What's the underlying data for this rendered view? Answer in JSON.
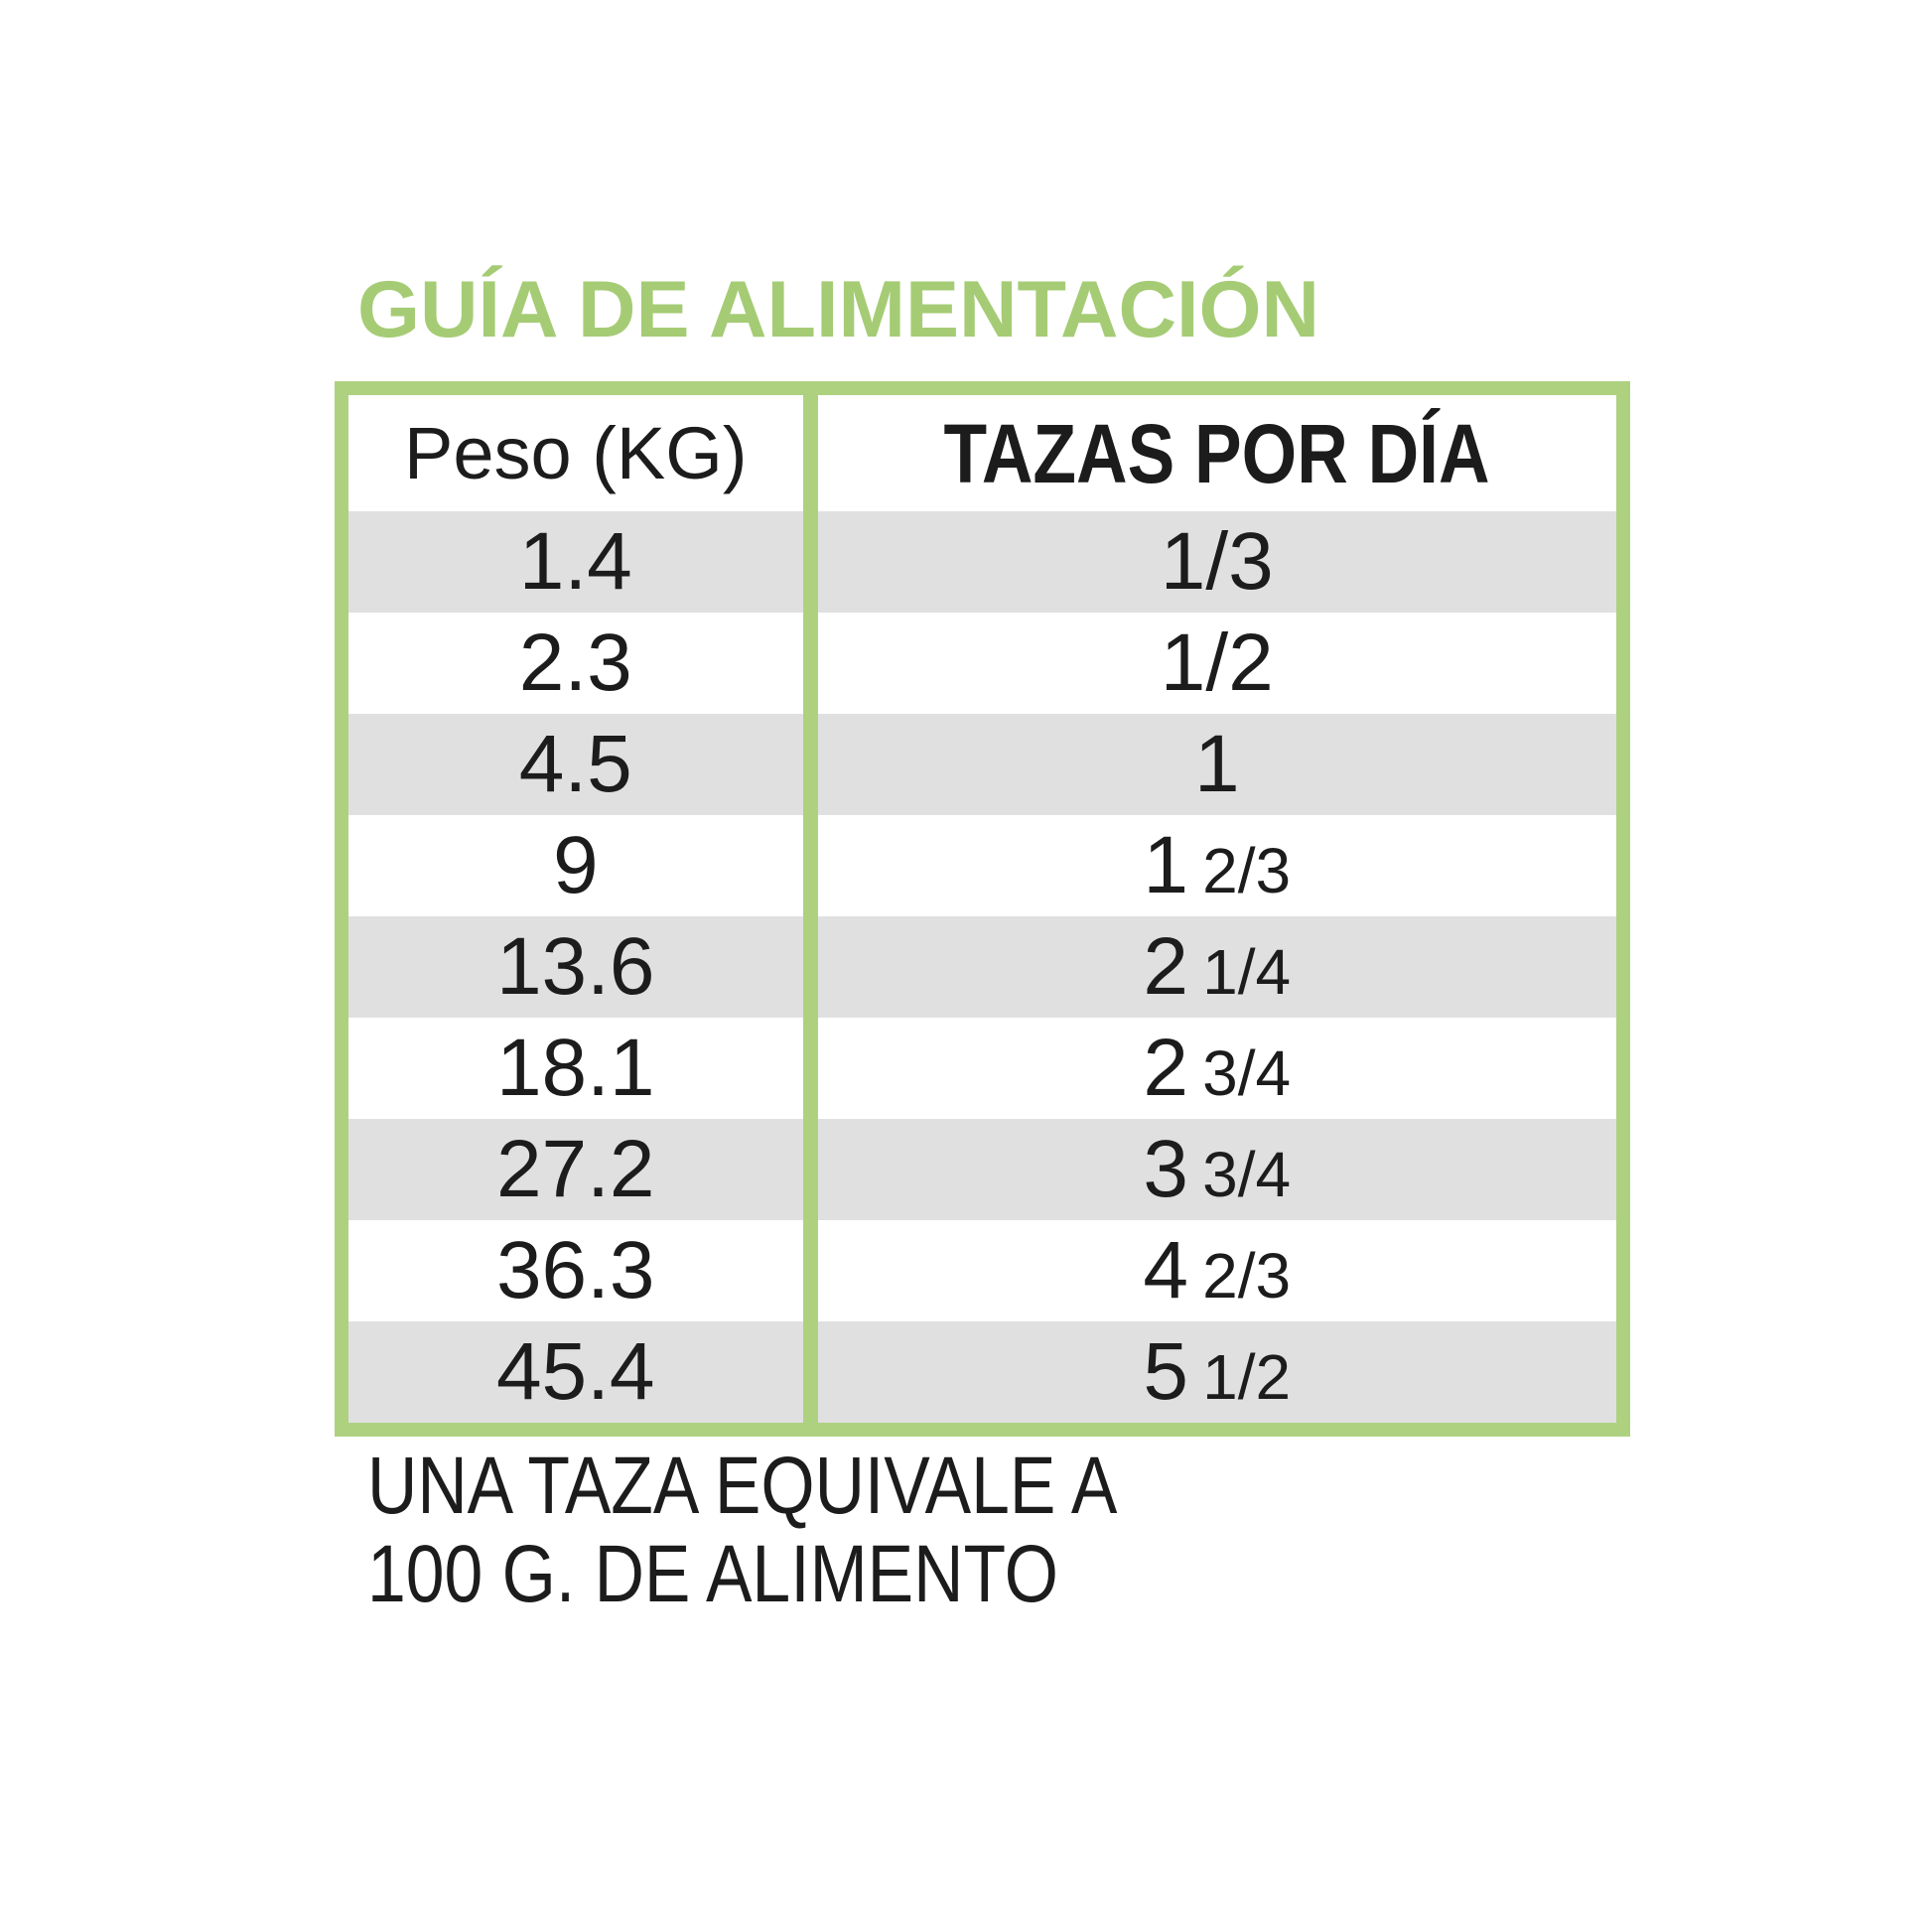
{
  "title": "GUÍA DE ALIMENTACIÓN",
  "colors": {
    "green_title": "#a5cc75",
    "green_border": "#aed180",
    "stripe_gray": "#e0e0e0",
    "text": "#1c1c1c",
    "background": "#ffffff"
  },
  "table": {
    "col1_header": "Peso (KG)",
    "col2_header": "TAZAS POR DÍA",
    "rows": [
      {
        "peso": "1.4",
        "cups_main": "1/3",
        "cups_frac": ""
      },
      {
        "peso": "2.3",
        "cups_main": "1/2",
        "cups_frac": ""
      },
      {
        "peso": "4.5",
        "cups_main": "1",
        "cups_frac": ""
      },
      {
        "peso": "9",
        "cups_main": "1",
        "cups_frac": "2/3"
      },
      {
        "peso": "13.6",
        "cups_main": "2",
        "cups_frac": "1/4"
      },
      {
        "peso": "18.1",
        "cups_main": "2",
        "cups_frac": "3/4"
      },
      {
        "peso": "27.2",
        "cups_main": "3",
        "cups_frac": "3/4"
      },
      {
        "peso": "36.3",
        "cups_main": "4",
        "cups_frac": "2/3"
      },
      {
        "peso": "45.4",
        "cups_main": "5",
        "cups_frac": "1/2"
      }
    ]
  },
  "note": {
    "line1": "UNA TAZA EQUIVALE A",
    "line2": "100 G. DE ALIMENTO"
  }
}
